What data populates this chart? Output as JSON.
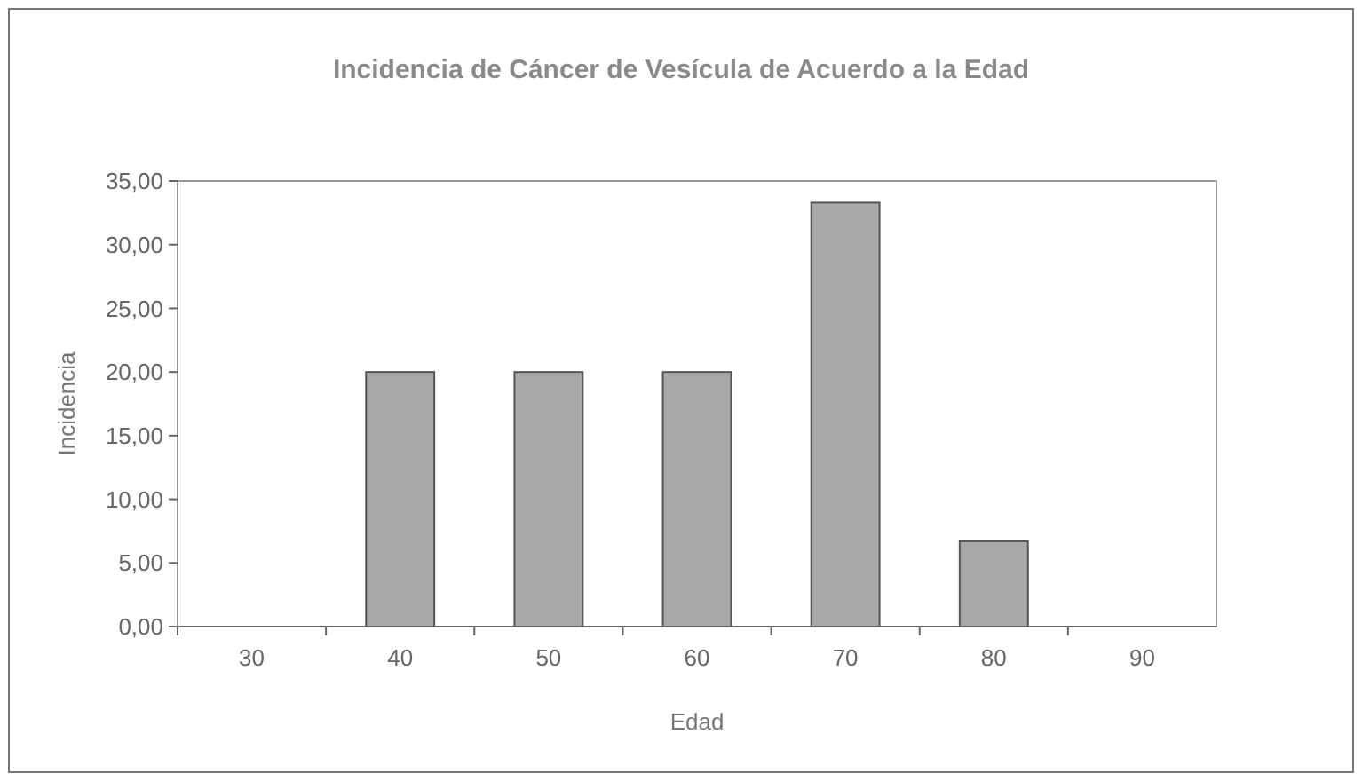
{
  "chart_data": {
    "type": "bar",
    "title": "Incidencia de Cáncer de Vesícula de Acuerdo a la Edad",
    "xlabel": "Edad",
    "ylabel": "Incidencia",
    "categories": [
      "30",
      "40",
      "50",
      "60",
      "70",
      "80",
      "90"
    ],
    "values": [
      0,
      20,
      20,
      20,
      33.3,
      6.7,
      0
    ],
    "color": "#a9a9a9",
    "ylim": [
      0,
      35
    ],
    "yticks": [
      {
        "value": 0,
        "label": "0,00"
      },
      {
        "value": 5,
        "label": "5,00"
      },
      {
        "value": 10,
        "label": "10,00"
      },
      {
        "value": 15,
        "label": "15,00"
      },
      {
        "value": 20,
        "label": "20,00"
      },
      {
        "value": 25,
        "label": "25,00"
      },
      {
        "value": 30,
        "label": "30,00"
      },
      {
        "value": 35,
        "label": "35,00"
      }
    ],
    "grid": false
  }
}
